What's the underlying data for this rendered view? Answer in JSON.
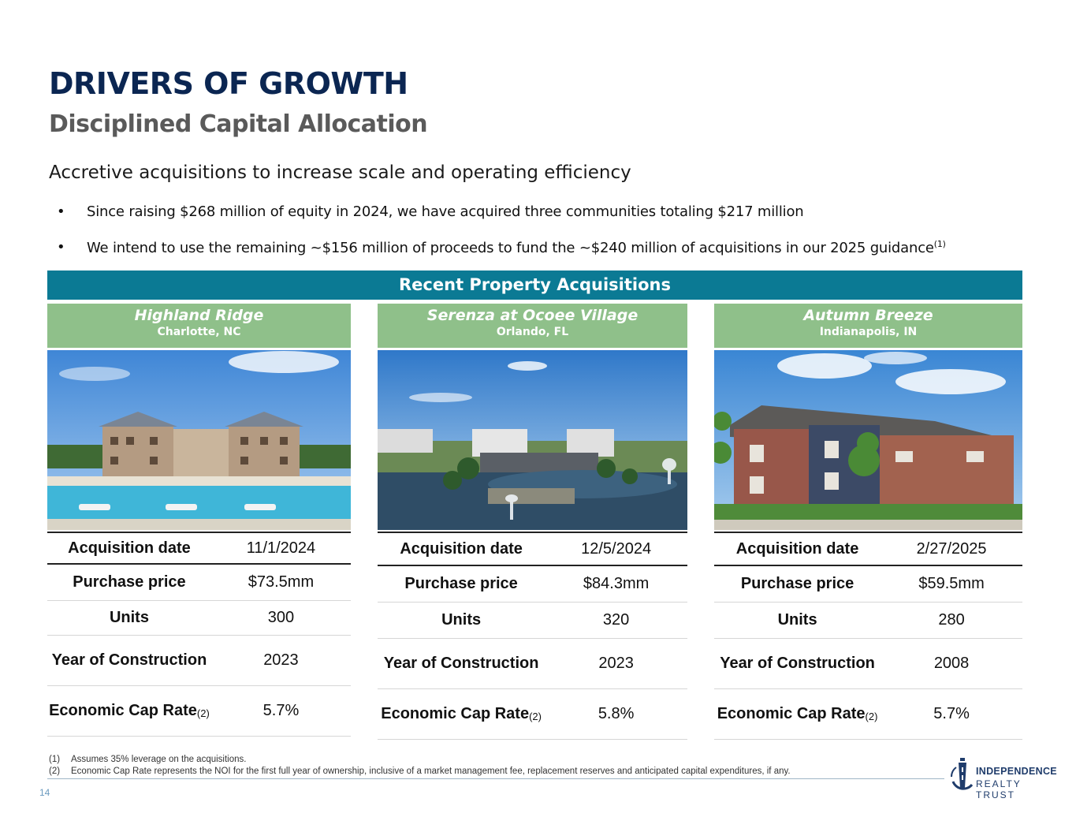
{
  "header": {
    "title": "DRIVERS OF GROWTH",
    "subtitle": "Disciplined Capital Allocation"
  },
  "section_heading": "Accretive acquisitions to increase scale and operating efficiency",
  "bullets": [
    {
      "marker": "•",
      "text": "Since raising $268 million of equity in 2024, we have acquired three communities totaling $217 million",
      "note": ""
    },
    {
      "marker": "•",
      "text": "We intend to use the remaining ~$156 million of proceeds to fund the ~$240 million of acquisitions in our 2025 guidance",
      "note": "(1)"
    }
  ],
  "banner": "Recent Property Acquisitions",
  "properties": [
    {
      "name": "Highland Ridge",
      "location": "Charlotte, NC",
      "rows": [
        {
          "label": "Acquisition date",
          "value": "11/1/2024"
        },
        {
          "label": "Purchase price",
          "value": "$73.5mm"
        },
        {
          "label": "Units",
          "value": "300"
        },
        {
          "label": "Year of Construction",
          "value": "2023"
        },
        {
          "label": "Economic Cap Rate",
          "note": "(2)",
          "value": "5.7%"
        }
      ]
    },
    {
      "name": "Serenza at Ocoee Village",
      "location": "Orlando, FL",
      "rows": [
        {
          "label": "Acquisition date",
          "value": "12/5/2024"
        },
        {
          "label": "Purchase price",
          "value": "$84.3mm"
        },
        {
          "label": "Units",
          "value": "320"
        },
        {
          "label": "Year of Construction",
          "value": "2023"
        },
        {
          "label": "Economic Cap Rate",
          "note": "(2)",
          "value": "5.8%"
        }
      ]
    },
    {
      "name": "Autumn Breeze",
      "location": "Indianapolis, IN",
      "rows": [
        {
          "label": "Acquisition date",
          "value": "2/27/2025"
        },
        {
          "label": "Purchase price",
          "value": "$59.5mm"
        },
        {
          "label": "Units",
          "value": "280"
        },
        {
          "label": "Year of Construction",
          "value": "2008"
        },
        {
          "label": "Economic Cap Rate",
          "note": "(2)",
          "value": "5.7%"
        }
      ]
    }
  ],
  "footnotes": [
    {
      "num": "(1)",
      "text": "Assumes 35% leverage on the acquisitions."
    },
    {
      "num": "(2)",
      "text": "Economic Cap Rate represents the NOI for the first full year of ownership, inclusive of a market management fee, replacement reserves and anticipated capital expenditures, if any."
    }
  ],
  "page_number": "14",
  "logo": {
    "line1": "INDEPENDENCE",
    "line2": "REALTY TRUST"
  },
  "colors": {
    "title": "#0b2652",
    "banner": "#0b7a94",
    "property_header": "#8fc08a",
    "subtitle": "#5a5a5a"
  }
}
